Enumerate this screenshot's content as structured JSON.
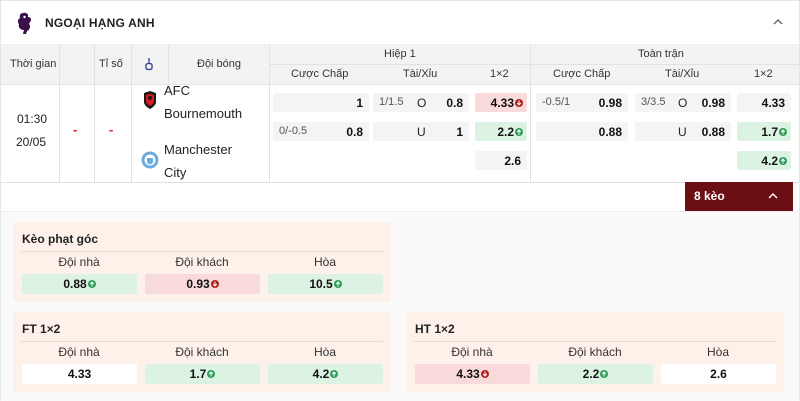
{
  "league": {
    "name": "NGOẠI HẠNG ANH"
  },
  "columns": {
    "time": "Thời gian",
    "score": "Tỉ số",
    "team": "Đội bóng",
    "half": "Hiệp 1",
    "full": "Toàn trận",
    "handicap": "Cược Chấp",
    "overunder": "Tài/Xỉu",
    "x12": "1×2"
  },
  "match": {
    "time": "01:30",
    "date": "20/05",
    "score_home": "-",
    "score_away": "-",
    "home": {
      "line1": "AFC",
      "line2": "Bournemouth"
    },
    "away": {
      "line1": "Manchester",
      "line2": "City"
    },
    "half": {
      "hdp": [
        {
          "line": "",
          "odd": "1"
        },
        {
          "line": "0/-0.5",
          "odd": "0.8"
        }
      ],
      "ou": [
        {
          "line": "1/1.5",
          "side": "O",
          "odd": "0.8"
        },
        {
          "line": "",
          "side": "U",
          "odd": "1"
        }
      ],
      "x12": [
        "4.33",
        "2.2",
        "2.6"
      ]
    },
    "full": {
      "hdp": [
        {
          "line": "-0.5/1",
          "odd": "0.98"
        },
        {
          "line": "",
          "odd": "0.88"
        }
      ],
      "ou": [
        {
          "line": "3/3.5",
          "side": "O",
          "odd": "0.98"
        },
        {
          "line": "",
          "side": "U",
          "odd": "0.88"
        }
      ],
      "x12": [
        "4.33",
        "1.7",
        "4.2"
      ]
    }
  },
  "more": {
    "label": "8 kèo"
  },
  "corner": {
    "title": "Kèo phạt góc",
    "home_label": "Đội nhà",
    "away_label": "Đội khách",
    "draw_label": "Hòa",
    "home": "0.88",
    "away": "0.93",
    "draw": "10.5"
  },
  "ft": {
    "title": "FT 1×2",
    "home_label": "Đội nhà",
    "away_label": "Đội khách",
    "draw_label": "Hòa",
    "home": "4.33",
    "away": "1.7",
    "draw": "4.2"
  },
  "ht": {
    "title": "HT 1×2",
    "home_label": "Đội nhà",
    "away_label": "Đội khách",
    "draw_label": "Hòa",
    "home": "4.33",
    "away": "2.2",
    "draw": "2.6"
  },
  "colors": {
    "accent": "#6b0f14",
    "up": "#2f9e55",
    "down": "#b02020",
    "card": "#fdf1ea"
  }
}
